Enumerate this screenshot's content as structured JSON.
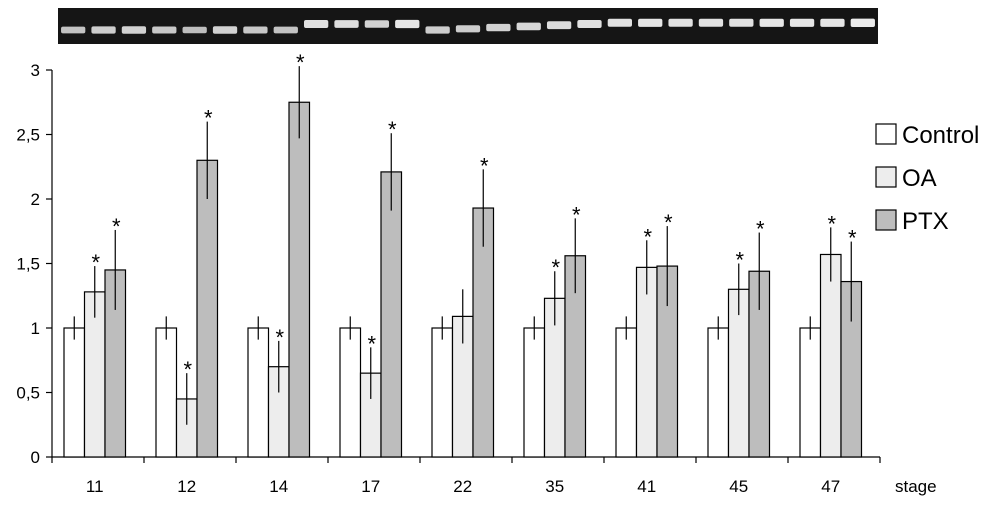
{
  "chart_data": {
    "type": "bar",
    "categories": [
      "11",
      "12",
      "14",
      "17",
      "22",
      "35",
      "41",
      "45",
      "47"
    ],
    "series": [
      {
        "name": "Control",
        "color": "#ffffff",
        "values": [
          1,
          1,
          1,
          1,
          1,
          1,
          1,
          1,
          1
        ],
        "errors": [
          0.09,
          0.09,
          0.09,
          0.09,
          0.09,
          0.09,
          0.09,
          0.09,
          0.09
        ],
        "significant": [
          false,
          false,
          false,
          false,
          false,
          false,
          false,
          false,
          false
        ]
      },
      {
        "name": "OA",
        "color": "#ededed",
        "values": [
          1.28,
          0.45,
          0.7,
          0.65,
          1.09,
          1.23,
          1.47,
          1.3,
          1.57
        ],
        "errors": [
          0.2,
          0.2,
          0.2,
          0.2,
          0.21,
          0.21,
          0.21,
          0.2,
          0.21
        ],
        "significant": [
          true,
          true,
          true,
          true,
          false,
          true,
          true,
          true,
          true
        ]
      },
      {
        "name": "PTX",
        "color": "#bdbdbd",
        "values": [
          1.45,
          2.3,
          2.75,
          2.21,
          1.93,
          1.56,
          1.48,
          1.44,
          1.36
        ],
        "errors": [
          0.31,
          0.3,
          0.28,
          0.3,
          0.3,
          0.29,
          0.31,
          0.3,
          0.31
        ],
        "significant": [
          true,
          true,
          true,
          true,
          true,
          true,
          true,
          true,
          true
        ]
      }
    ],
    "y_ticks": [
      "0",
      "0,5",
      "1",
      "1,5",
      "2",
      "2,5",
      "3"
    ],
    "y_tick_values": [
      0,
      0.5,
      1,
      1.5,
      2,
      2.5,
      3
    ],
    "significance_marker": "*",
    "xlabel": "stage",
    "ylabel": "",
    "title": "",
    "ylim": [
      0,
      3
    ],
    "grid": false,
    "legend": "right",
    "gel_bands": [
      {
        "rel_height": 0.45
      },
      {
        "rel_height": 0.55
      },
      {
        "rel_height": 0.6
      },
      {
        "rel_height": 0.5
      },
      {
        "rel_height": 0.4
      },
      {
        "rel_height": 0.6
      },
      {
        "rel_height": 0.5
      },
      {
        "rel_height": 0.45
      },
      {
        "rel_height": 0.75
      },
      {
        "rel_height": 0.7
      },
      {
        "rel_height": 0.6
      },
      {
        "rel_height": 0.8
      },
      {
        "rel_height": 0.55
      },
      {
        "rel_height": 0.55
      },
      {
        "rel_height": 0.6
      },
      {
        "rel_height": 0.65
      },
      {
        "rel_height": 0.7
      },
      {
        "rel_height": 0.75
      },
      {
        "rel_height": 0.75
      },
      {
        "rel_height": 0.8
      },
      {
        "rel_height": 0.75
      },
      {
        "rel_height": 0.75
      },
      {
        "rel_height": 0.75
      },
      {
        "rel_height": 0.8
      },
      {
        "rel_height": 0.8
      },
      {
        "rel_height": 0.8
      },
      {
        "rel_height": 0.85
      }
    ]
  }
}
